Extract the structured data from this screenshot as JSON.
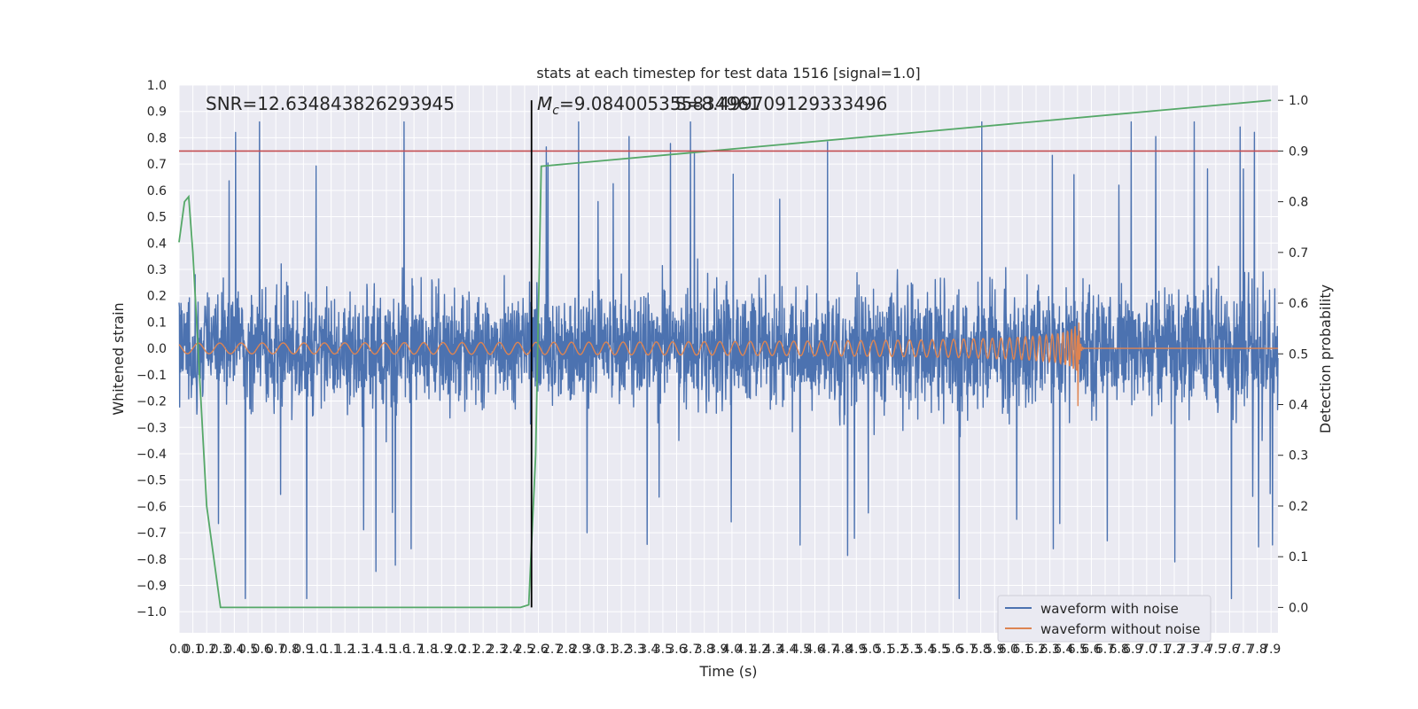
{
  "chart_data": {
    "type": "line",
    "title": "stats at each timestep for test data 1516 [signal=1.0]",
    "xlabel": "Time (s)",
    "ylabel": "Whitened strain",
    "y2label": "Detection probability",
    "xlim": [
      0.0,
      7.95
    ],
    "ylim": [
      -1.08,
      1.0
    ],
    "y2lim": [
      -0.05,
      1.03
    ],
    "xticks": [
      0.0,
      0.1,
      0.2,
      0.3,
      0.4,
      0.5,
      0.6,
      0.7,
      0.8,
      0.9,
      1.0,
      1.1,
      1.2,
      1.3,
      1.4,
      1.5,
      1.6,
      1.7,
      1.8,
      1.9,
      2.0,
      2.1,
      2.2,
      2.3,
      2.4,
      2.5,
      2.6,
      2.7,
      2.8,
      2.9,
      3.0,
      3.1,
      3.2,
      3.3,
      3.4,
      3.5,
      3.6,
      3.7,
      3.8,
      3.9,
      4.0,
      4.1,
      4.2,
      4.3,
      4.4,
      4.5,
      4.6,
      4.7,
      4.8,
      4.9,
      5.0,
      5.1,
      5.2,
      5.3,
      5.4,
      5.5,
      5.6,
      5.7,
      5.8,
      5.9,
      6.0,
      6.1,
      6.2,
      6.3,
      6.4,
      6.5,
      6.6,
      6.7,
      6.8,
      6.9,
      7.0,
      7.1,
      7.2,
      7.3,
      7.4,
      7.5,
      7.6,
      7.7,
      7.8,
      7.9
    ],
    "yticks": [
      1.0,
      0.9,
      0.8,
      0.7,
      0.6,
      0.5,
      0.4,
      0.3,
      0.2,
      0.1,
      0.0,
      -0.1,
      -0.2,
      -0.3,
      -0.4,
      -0.5,
      -0.6,
      -0.7,
      -0.8,
      -0.9,
      -1.0
    ],
    "y2ticks": [
      1.0,
      0.9,
      0.8,
      0.7,
      0.6,
      0.5,
      0.4,
      0.3,
      0.2,
      0.1,
      0.0
    ],
    "series": [
      {
        "name": "waveform with noise",
        "color": "#4c72b0",
        "note": "dense noise, amplitude ~0.5 with spikes up to ~0.9 / -1.0"
      },
      {
        "name": "waveform without noise",
        "color": "#dd8452",
        "note": "chirp: amplitude 0.02 growing to ~0.33 at merger t≈6.5 s, then ringdown to ~0"
      },
      {
        "name": "detection probability",
        "color": "#55a868",
        "axis": "right",
        "x": [
          0.0,
          0.04,
          0.07,
          0.1,
          0.2,
          0.3,
          2.47,
          2.53,
          2.58,
          2.62,
          7.9
        ],
        "y": [
          0.72,
          0.8,
          0.81,
          0.7,
          0.2,
          0.0,
          0.0,
          0.005,
          0.3,
          0.87,
          1.0
        ]
      }
    ],
    "threshold": {
      "value": 0.9,
      "axis": "right",
      "color": "#c44e52"
    },
    "vline": {
      "x": 2.55,
      "color": "#000000"
    },
    "annotations": {
      "snr": "SNR=12.634843826293945",
      "mc_symbol": "M",
      "mc_sub": "c",
      "mc_value": "=9.084005355834961",
      "overlap": "S=8.499709129333496"
    },
    "legend": {
      "location": "bottom-right",
      "entries": [
        "waveform with noise",
        "waveform without noise"
      ]
    }
  }
}
